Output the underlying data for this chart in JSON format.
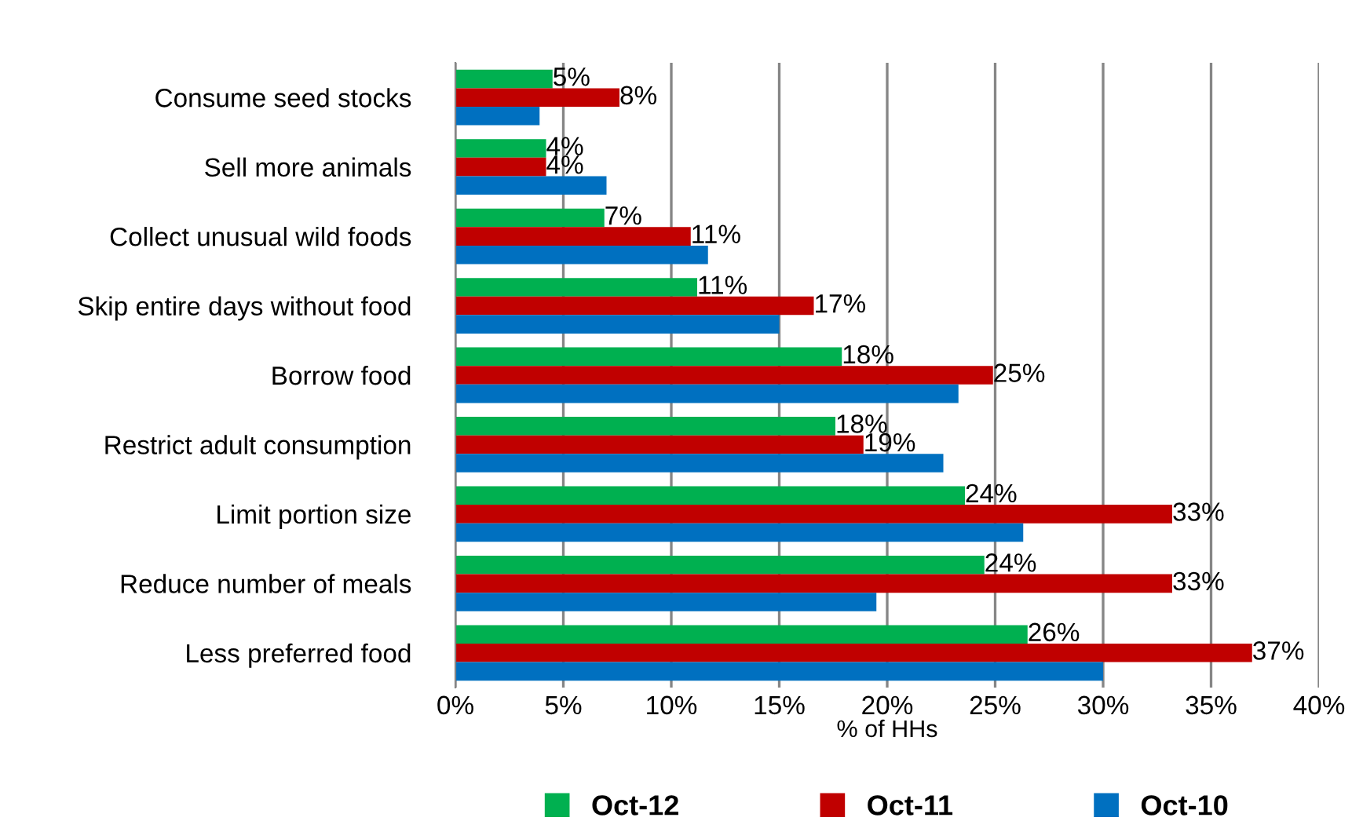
{
  "chart_data": {
    "type": "bar",
    "orientation": "horizontal",
    "xlabel": "% of HHs",
    "categories": [
      "Consume seed stocks",
      "Sell more animals",
      "Collect unusual wild foods",
      "Skip entire days without food",
      "Borrow food",
      "Restrict adult consumption",
      "Limit portion size",
      "Reduce number of meals",
      "Less preferred food"
    ],
    "series": [
      {
        "name": "Oct-12",
        "color": "#00b050",
        "values": [
          4.5,
          4.2,
          6.9,
          11.2,
          17.9,
          17.6,
          23.6,
          24.5,
          26.5
        ],
        "value_labels": [
          "5%",
          "4%",
          "7%",
          "11%",
          "18%",
          "18%",
          "24%",
          "24%",
          "26%"
        ]
      },
      {
        "name": "Oct-11",
        "color": "#c00000",
        "values": [
          7.6,
          4.2,
          10.9,
          16.6,
          24.9,
          18.9,
          33.2,
          33.2,
          36.9
        ],
        "value_labels": [
          "8%",
          "4%",
          "11%",
          "17%",
          "25%",
          "19%",
          "33%",
          "33%",
          "37%"
        ]
      },
      {
        "name": "Oct-10",
        "color": "#0070c0",
        "values": [
          3.9,
          7.0,
          11.7,
          15.0,
          23.3,
          22.6,
          26.3,
          19.5,
          30.0
        ]
      }
    ],
    "xlim": [
      0,
      40
    ],
    "xticks": [
      {
        "value": 0,
        "label": "0%"
      },
      {
        "value": 5,
        "label": "5%"
      },
      {
        "value": 10,
        "label": "10%"
      },
      {
        "value": 15,
        "label": "15%"
      },
      {
        "value": 20,
        "label": "20%"
      },
      {
        "value": 25,
        "label": "25%"
      },
      {
        "value": 30,
        "label": "30%"
      },
      {
        "value": 35,
        "label": "35%"
      },
      {
        "value": 40,
        "label": "40%"
      }
    ],
    "grid": "x",
    "legend": "bottom"
  }
}
